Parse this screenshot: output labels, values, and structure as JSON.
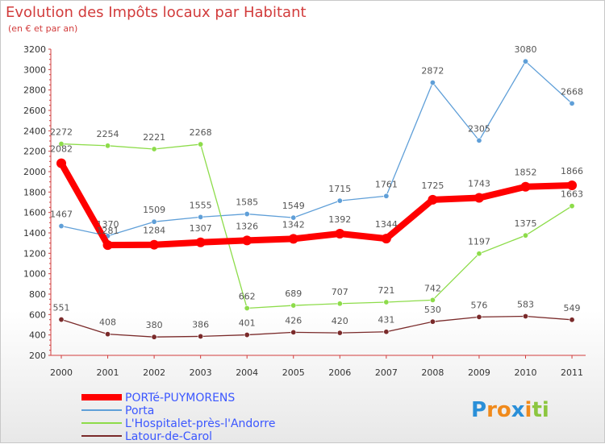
{
  "chart_data": {
    "type": "line",
    "title": "Evolution des Impôts locaux par Habitant",
    "subtitle": "(en € et par an)",
    "xlabel": "",
    "ylabel": "",
    "categories": [
      "2000",
      "2001",
      "2002",
      "2003",
      "2004",
      "2005",
      "2006",
      "2007",
      "2008",
      "2009",
      "2010",
      "2011"
    ],
    "ylim": [
      200,
      3200
    ],
    "yticks": [
      200,
      400,
      600,
      800,
      1000,
      1200,
      1400,
      1600,
      1800,
      2000,
      2200,
      2400,
      2600,
      2800,
      3000,
      3200
    ],
    "grid": false,
    "legend_position": "bottom",
    "series": [
      {
        "name": "PORTé-PUYMORENS",
        "color": "#ff0000",
        "values": [
          2082,
          1281,
          1284,
          1307,
          1326,
          1342,
          1392,
          1344,
          1725,
          1743,
          1852,
          1866
        ]
      },
      {
        "name": "Porta",
        "color": "#5f9fd8",
        "values": [
          1467,
          1370,
          1509,
          1555,
          1585,
          1549,
          1715,
          1761,
          2872,
          2305,
          3080,
          2668
        ]
      },
      {
        "name": "L'Hospitalet-près-l'Andorre",
        "color": "#8ddc4a",
        "values": [
          2272,
          2254,
          2221,
          2268,
          662,
          689,
          707,
          721,
          742,
          1197,
          1375,
          1663
        ]
      },
      {
        "name": "Latour-de-Carol",
        "color": "#7a2a2a",
        "values": [
          551,
          408,
          380,
          386,
          401,
          426,
          420,
          431,
          530,
          576,
          583,
          549
        ]
      }
    ]
  },
  "logo": {
    "text": "Proxiti",
    "letters": [
      "P",
      "r",
      "o",
      "x",
      "i",
      "t",
      "i"
    ],
    "colors": [
      "#2a8fd8",
      "#f08a1c",
      "#f08a1c",
      "#2a8fd8",
      "#f08a1c",
      "#8cc63f",
      "#8cc63f"
    ]
  }
}
